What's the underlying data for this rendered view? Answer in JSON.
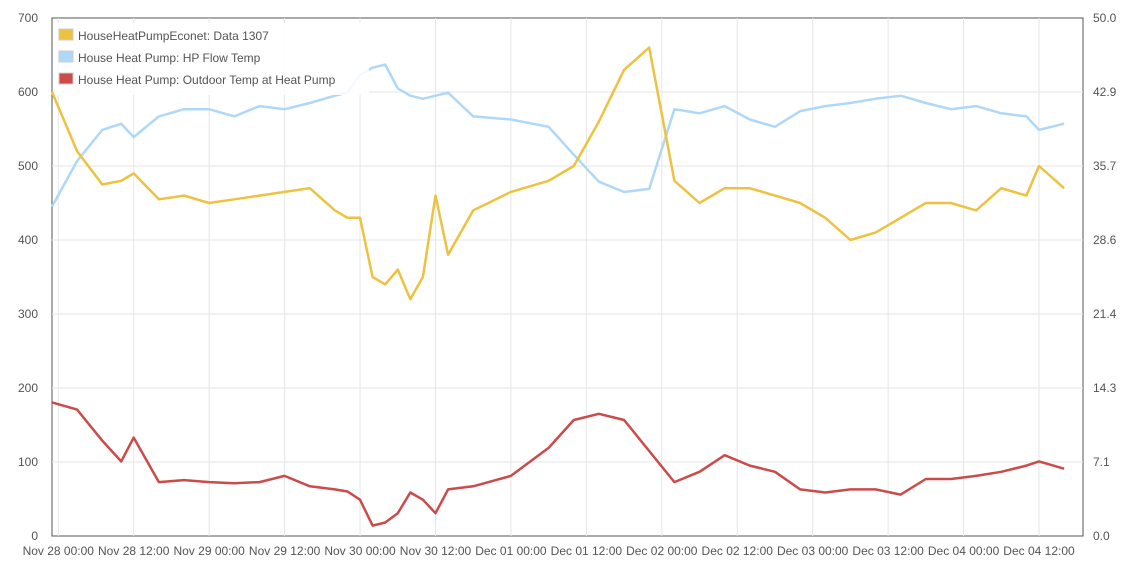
{
  "chart_data": {
    "type": "line",
    "title": "",
    "grid": true,
    "legend_position": "top-left",
    "x": [
      "Nov 27 23:00",
      "Nov 28 03:00",
      "Nov 28 07:00",
      "Nov 28 10:00",
      "Nov 28 12:00",
      "Nov 28 16:00",
      "Nov 28 20:00",
      "Nov 29 00:00",
      "Nov 29 04:00",
      "Nov 29 08:00",
      "Nov 29 12:00",
      "Nov 29 16:00",
      "Nov 29 20:00",
      "Nov 29 22:00",
      "Nov 30 00:00",
      "Nov 30 02:00",
      "Nov 30 04:00",
      "Nov 30 06:00",
      "Nov 30 08:00",
      "Nov 30 10:00",
      "Nov 30 12:00",
      "Nov 30 14:00",
      "Nov 30 18:00",
      "Dec 01 00:00",
      "Dec 01 06:00",
      "Dec 01 10:00",
      "Dec 01 14:00",
      "Dec 01 18:00",
      "Dec 01 22:00",
      "Dec 02 02:00",
      "Dec 02 06:00",
      "Dec 02 10:00",
      "Dec 02 14:00",
      "Dec 02 18:00",
      "Dec 02 22:00",
      "Dec 03 02:00",
      "Dec 03 06:00",
      "Dec 03 10:00",
      "Dec 03 14:00",
      "Dec 03 18:00",
      "Dec 03 22:00",
      "Dec 04 02:00",
      "Dec 04 06:00",
      "Dec 04 10:00",
      "Dec 04 12:00",
      "Dec 04 16:00"
    ],
    "series": [
      {
        "name": "HouseHeatPumpEconet: Data 1307",
        "color": "#edc240",
        "axis": "left",
        "values": [
          600,
          520,
          475,
          480,
          490,
          455,
          460,
          450,
          455,
          460,
          465,
          470,
          440,
          430,
          430,
          350,
          340,
          360,
          320,
          350,
          460,
          380,
          440,
          465,
          480,
          500,
          560,
          630,
          660,
          480,
          450,
          470,
          470,
          460,
          450,
          430,
          400,
          410,
          430,
          450,
          450,
          440,
          470,
          460,
          500,
          470
        ]
      },
      {
        "name": "House Heat Pump: HP Flow Temp",
        "color": "#afd8f8",
        "axis": "right",
        "values": [
          31.8,
          36.2,
          39.2,
          39.8,
          38.5,
          40.5,
          41.2,
          41.2,
          40.5,
          41.5,
          41.2,
          41.8,
          42.5,
          42.8,
          44.5,
          45.2,
          45.5,
          43.2,
          42.5,
          42.2,
          42.5,
          42.8,
          40.5,
          40.2,
          39.5,
          36.8,
          34.2,
          33.2,
          33.5,
          41.2,
          40.8,
          41.5,
          40.2,
          39.5,
          41.0,
          41.5,
          41.8,
          42.2,
          42.5,
          41.8,
          41.2,
          41.5,
          40.8,
          40.5,
          39.2,
          39.8
        ]
      },
      {
        "name": "House Heat Pump: Outdoor Temp at Heat Pump",
        "color": "#cb4b4b",
        "axis": "right",
        "values": [
          12.9,
          12.2,
          9.2,
          7.2,
          9.5,
          5.2,
          5.4,
          5.2,
          5.1,
          5.2,
          5.8,
          4.8,
          4.5,
          4.3,
          3.5,
          1.0,
          1.3,
          2.2,
          4.2,
          3.5,
          2.2,
          4.5,
          4.8,
          5.8,
          8.5,
          11.2,
          11.8,
          11.2,
          8.2,
          5.2,
          6.2,
          7.8,
          6.8,
          6.2,
          4.5,
          4.2,
          4.5,
          4.5,
          4.0,
          5.5,
          5.5,
          5.8,
          6.2,
          6.8,
          7.2,
          6.5
        ]
      }
    ],
    "x_tick_labels": [
      "Nov 28 00:00",
      "Nov 28 12:00",
      "Nov 29 00:00",
      "Nov 29 12:00",
      "Nov 30 00:00",
      "Nov 30 12:00",
      "Dec 01 00:00",
      "Dec 01 12:00",
      "Dec 02 00:00",
      "Dec 02 12:00",
      "Dec 03 00:00",
      "Dec 03 12:00",
      "Dec 04 00:00",
      "Dec 04 12:00"
    ],
    "y_left_ticks": [
      "0",
      "100",
      "200",
      "300",
      "400",
      "500",
      "600",
      "700"
    ],
    "y_right_ticks": [
      "0.0",
      "7.1",
      "14.3",
      "21.4",
      "28.6",
      "35.7",
      "42.9",
      "50.0"
    ],
    "ylim_left": [
      0,
      700
    ],
    "ylim_right": [
      0,
      50
    ],
    "xlabel": "",
    "ylabel": ""
  }
}
